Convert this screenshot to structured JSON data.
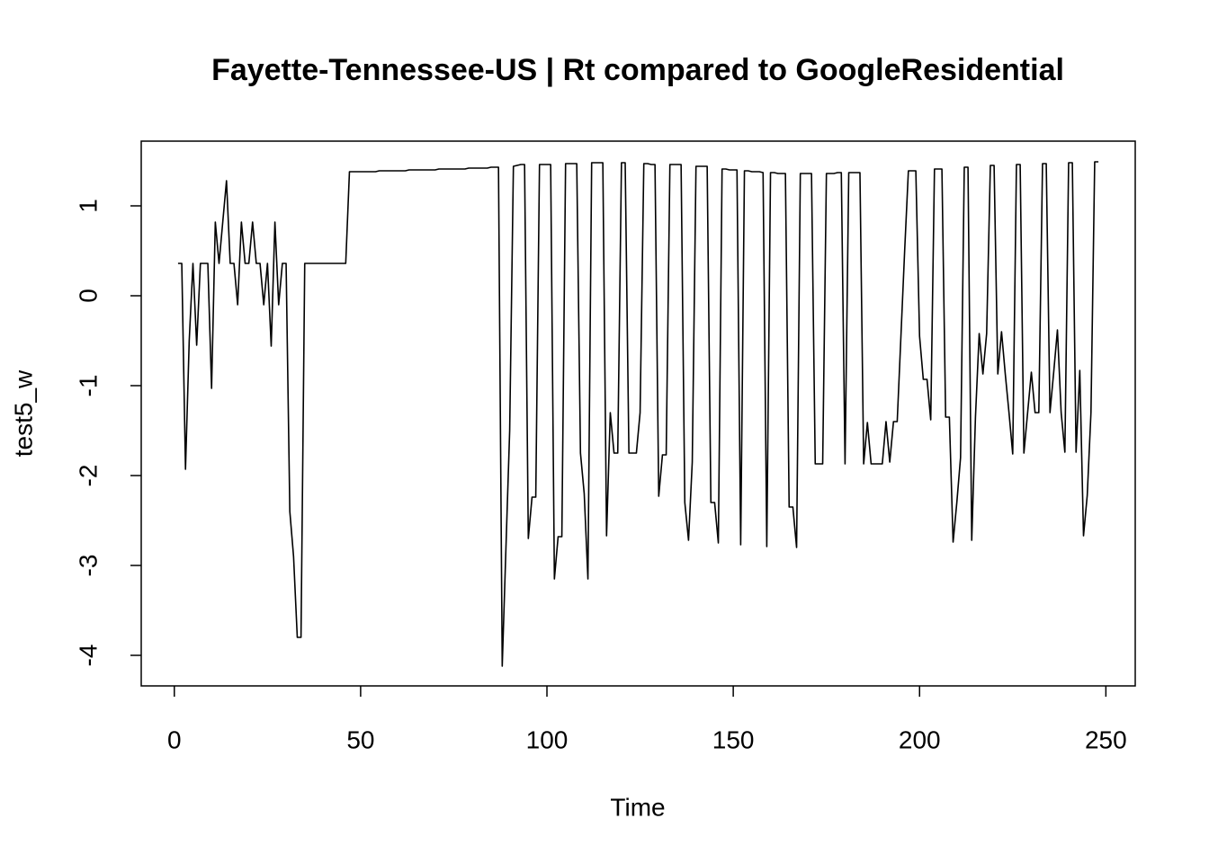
{
  "chart_data": {
    "type": "line",
    "title": "Fayette-Tennessee-US | Rt compared to GoogleResidential",
    "x_label": "Time",
    "y_label": "test5_w",
    "color": "#000000",
    "xlim": [
      -8.88,
      257.88
    ],
    "ylim": [
      -4.34,
      1.72
    ],
    "xticks": [
      0,
      50,
      100,
      150,
      200,
      250
    ],
    "yticks": [
      -4,
      -3,
      -2,
      -1,
      0,
      1
    ],
    "x": [
      1,
      2,
      3,
      4,
      5,
      6,
      7,
      8,
      9,
      10,
      11,
      12,
      13,
      14,
      15,
      16,
      17,
      18,
      19,
      20,
      21,
      22,
      23,
      24,
      25,
      26,
      27,
      28,
      29,
      30,
      31,
      32,
      33,
      34,
      35,
      36,
      37,
      38,
      39,
      40,
      41,
      42,
      43,
      44,
      45,
      46,
      47,
      48,
      49,
      50,
      51,
      52,
      53,
      54,
      55,
      56,
      57,
      58,
      59,
      60,
      61,
      62,
      63,
      64,
      65,
      66,
      67,
      68,
      69,
      70,
      71,
      72,
      73,
      74,
      75,
      76,
      77,
      78,
      79,
      80,
      81,
      82,
      83,
      84,
      85,
      86,
      87,
      88,
      89,
      90,
      91,
      92,
      93,
      94,
      95,
      96,
      97,
      98,
      99,
      100,
      101,
      102,
      103,
      104,
      105,
      106,
      107,
      108,
      109,
      110,
      111,
      112,
      113,
      114,
      115,
      116,
      117,
      118,
      119,
      120,
      121,
      122,
      123,
      124,
      125,
      126,
      127,
      128,
      129,
      130,
      131,
      132,
      133,
      134,
      135,
      136,
      137,
      138,
      139,
      140,
      141,
      142,
      143,
      144,
      145,
      146,
      147,
      148,
      149,
      150,
      151,
      152,
      153,
      154,
      155,
      156,
      157,
      158,
      159,
      160,
      161,
      162,
      163,
      164,
      165,
      166,
      167,
      168,
      169,
      170,
      171,
      172,
      173,
      174,
      175,
      176,
      177,
      178,
      179,
      180,
      181,
      182,
      183,
      184,
      185,
      186,
      187,
      188,
      189,
      190,
      191,
      192,
      193,
      194,
      195,
      196,
      197,
      198,
      199,
      200,
      201,
      202,
      203,
      204,
      205,
      206,
      207,
      208,
      209,
      210,
      211,
      212,
      213,
      214,
      215,
      216,
      217,
      218,
      219,
      220,
      221,
      222,
      223,
      224,
      225,
      226,
      227,
      228,
      229,
      230,
      231,
      232,
      233,
      234,
      235,
      236,
      237,
      238,
      239,
      240,
      241,
      242,
      243,
      244,
      245,
      246,
      247,
      248
    ],
    "values": [
      0.36,
      0.36,
      -1.93,
      -0.5,
      0.36,
      -0.55,
      0.36,
      0.36,
      0.36,
      -1.03,
      0.82,
      0.36,
      0.82,
      1.28,
      0.36,
      0.36,
      -0.1,
      0.82,
      0.36,
      0.36,
      0.82,
      0.36,
      0.36,
      -0.1,
      0.36,
      -0.56,
      0.82,
      -0.1,
      0.36,
      0.36,
      -2.4,
      -2.9,
      -3.8,
      -3.8,
      0.36,
      0.36,
      0.36,
      0.36,
      0.36,
      0.36,
      0.36,
      0.36,
      0.36,
      0.36,
      0.36,
      0.36,
      1.38,
      1.38,
      1.38,
      1.38,
      1.38,
      1.38,
      1.38,
      1.38,
      1.39,
      1.39,
      1.39,
      1.39,
      1.39,
      1.39,
      1.39,
      1.39,
      1.4,
      1.4,
      1.4,
      1.4,
      1.4,
      1.4,
      1.4,
      1.4,
      1.41,
      1.41,
      1.41,
      1.41,
      1.41,
      1.41,
      1.41,
      1.41,
      1.42,
      1.42,
      1.42,
      1.42,
      1.42,
      1.42,
      1.43,
      1.43,
      1.43,
      -4.12,
      -2.8,
      -1.5,
      1.44,
      1.45,
      1.46,
      1.46,
      -2.7,
      -2.24,
      -2.24,
      1.46,
      1.46,
      1.46,
      1.46,
      -3.15,
      -2.68,
      -2.68,
      1.47,
      1.47,
      1.47,
      1.47,
      -1.75,
      -2.2,
      -3.15,
      1.48,
      1.48,
      1.48,
      1.48,
      -2.67,
      -1.3,
      -1.75,
      -1.75,
      1.48,
      1.48,
      -1.75,
      -1.75,
      -1.75,
      -1.3,
      1.47,
      1.47,
      1.46,
      1.46,
      -2.23,
      -1.77,
      -1.77,
      1.46,
      1.46,
      1.46,
      1.46,
      -2.3,
      -2.72,
      -1.85,
      1.44,
      1.44,
      1.44,
      1.44,
      -2.3,
      -2.3,
      -2.75,
      1.41,
      1.41,
      1.4,
      1.4,
      1.4,
      -2.77,
      1.39,
      1.39,
      1.38,
      1.38,
      1.38,
      1.37,
      -2.79,
      1.37,
      1.37,
      1.36,
      1.36,
      1.36,
      -2.35,
      -2.35,
      -2.8,
      1.36,
      1.36,
      1.36,
      1.36,
      -1.87,
      -1.87,
      -1.87,
      1.36,
      1.36,
      1.36,
      1.37,
      1.37,
      -1.87,
      1.37,
      1.37,
      1.37,
      1.37,
      -1.87,
      -1.41,
      -1.87,
      -1.87,
      -1.87,
      -1.87,
      -1.4,
      -1.85,
      -1.4,
      -1.4,
      -0.45,
      0.5,
      1.39,
      1.39,
      1.39,
      -0.45,
      -0.93,
      -0.93,
      -1.38,
      1.41,
      1.41,
      1.41,
      -1.35,
      -1.35,
      -2.74,
      -2.3,
      -1.8,
      1.43,
      1.43,
      -2.72,
      -1.35,
      -0.42,
      -0.87,
      -0.42,
      1.45,
      1.45,
      -0.87,
      -0.4,
      -0.87,
      -1.3,
      -1.76,
      1.46,
      1.46,
      -1.75,
      -1.3,
      -0.85,
      -1.3,
      -1.3,
      1.47,
      1.47,
      -1.3,
      -0.85,
      -0.38,
      -1.3,
      -1.74,
      1.48,
      1.48,
      -1.74,
      -0.83,
      -2.67,
      -2.22,
      -1.3,
      1.49,
      1.49
    ]
  }
}
